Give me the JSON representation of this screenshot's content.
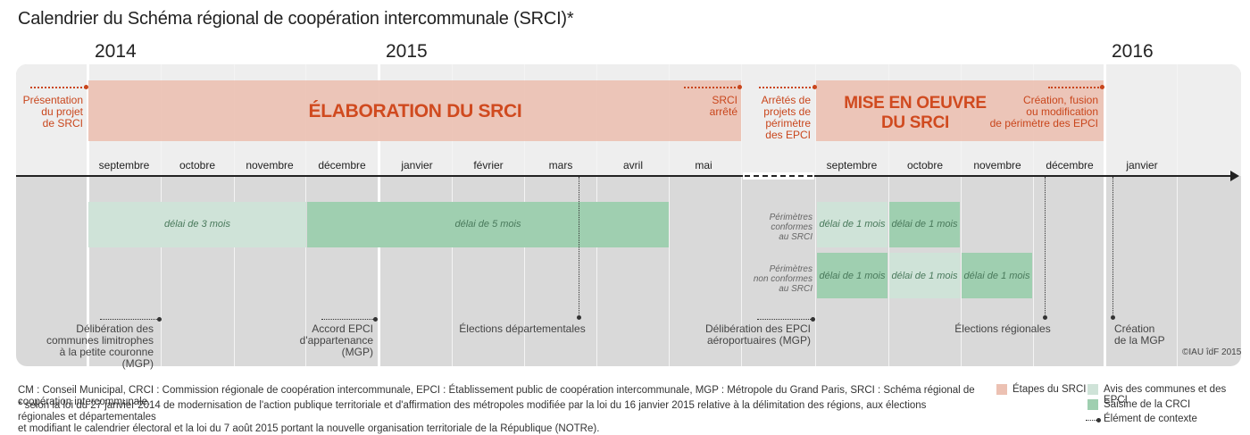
{
  "title": "Calendrier du Schéma régional de coopération intercommunale (SRCI)*",
  "years": [
    "2014",
    "2015",
    "2016"
  ],
  "phases": {
    "elaboration": "ÉLABORATION DU SRCI",
    "mise_en_oeuvre": [
      "MISE EN OEUVRE",
      "DU SRCI"
    ]
  },
  "etapes": {
    "presentation": [
      "Présentation",
      "du projet",
      "de SRCI"
    ],
    "arrete": [
      "SRCI",
      "arrêté"
    ],
    "arretes_perimetre": [
      "Arrêtés de",
      "projets de",
      "périmètre",
      "des EPCI"
    ],
    "creation_fusion": [
      "Création, fusion",
      "ou modification",
      "de périmètre des EPCI"
    ]
  },
  "months_left": [
    "septembre",
    "octobre",
    "novembre",
    "décembre",
    "janvier",
    "février",
    "mars",
    "avril",
    "mai"
  ],
  "months_right": [
    "septembre",
    "octobre",
    "novembre",
    "décembre",
    "janvier"
  ],
  "delais": {
    "communes_3": "délai de 3 mois",
    "communes_5": "délai de 5 mois",
    "conformes_1": "délai de 1 mois",
    "conformes_2": "délai de 1 mois",
    "nonconf_1": "délai de 1 mois",
    "nonconf_2": "délai de 1 mois",
    "nonconf_3": "délai de 1 mois"
  },
  "perimetres": {
    "conformes": [
      "Périmètres",
      "conformes",
      "au SRCI"
    ],
    "non_conformes": [
      "Périmètres",
      "non conformes",
      "au SRCI"
    ]
  },
  "contexte": {
    "deliberation_communes": [
      "Délibération des",
      "communes limitrophes",
      "à la petite couronne (MGP)"
    ],
    "accord_epci": [
      "Accord EPCI",
      "d'appartenance",
      "(MGP)"
    ],
    "elections_dep": "Élections départementales",
    "deliberation_epci": [
      "Délibération des EPCI",
      "aéroportuaires (MGP)"
    ],
    "elections_reg": "Élections régionales",
    "creation_mgp": [
      "Création",
      "de la MGP"
    ]
  },
  "copyright": "©IAU îdF 2015",
  "footnotes": {
    "abbr": "CM : Conseil Municipal, CRCI : Commission régionale de coopération intercommunale, EPCI : Établissement public de coopération intercommunale, MGP : Métropole du Grand Paris, SRCI : Schéma régional de coopération intercommunale.",
    "star": [
      "* selon la loi du 27 janvier 2014 de modernisation de l'action publique territoriale et d'affirmation des métropoles modifiée par la loi du 16 janvier 2015 relative à la délimitation des régions, aux élections régionales et départementales",
      "et modifiant le calendrier électoral et la loi du 7 août 2015 portant la nouvelle organisation territoriale de la République (NOTRe)."
    ]
  },
  "legend": {
    "etapes": "Étapes du SRCI",
    "avis": "Avis des communes et des EPCI",
    "saisine": "Saisine de la CRCI",
    "contexte": "Élément de contexte"
  },
  "colors": {
    "etapes": "#ecc1b3",
    "avis": "#cfe3d8",
    "saisine": "#9fcfb0",
    "accent": "#c9461c"
  }
}
